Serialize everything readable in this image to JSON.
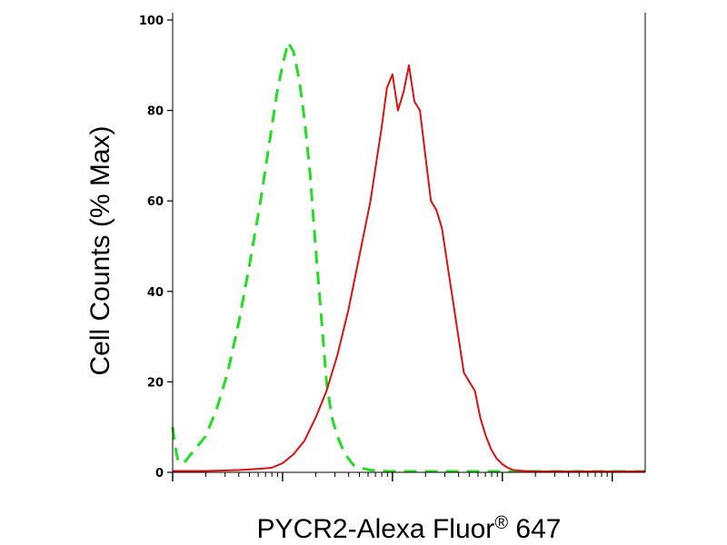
{
  "chart_data": {
    "type": "line",
    "title": "",
    "ylabel": "Cell Counts (% Max)",
    "xlabel": "PYCR2-Alexa Fluor",
    "xlabel_superscript": "®",
    "xlabel_suffix": " 647",
    "ylim": [
      0,
      100
    ],
    "yticks": [
      0,
      20,
      40,
      60,
      80,
      100
    ],
    "ytick_labels": [
      "0",
      "20",
      "40",
      "60",
      "80",
      "100"
    ],
    "xscale": "log",
    "xlim_decades": [
      0,
      4.3
    ],
    "grid": false,
    "legend": "none",
    "series": [
      {
        "style": "dashed",
        "color": "#22dd22",
        "x": [
          0.0,
          0.02,
          0.05,
          0.1,
          0.15,
          0.2,
          0.3,
          0.4,
          0.5,
          0.6,
          0.7,
          0.8,
          0.85,
          0.9,
          0.95,
          1.0,
          1.05,
          1.1,
          1.15,
          1.2,
          1.25,
          1.3,
          1.35,
          1.4,
          1.45,
          1.5,
          1.55,
          1.6,
          1.65,
          1.7,
          1.8,
          1.9,
          2.0,
          2.2,
          2.4,
          2.6,
          2.8,
          3.0,
          3.2,
          3.4,
          3.6,
          3.8,
          4.0,
          4.2,
          4.3
        ],
        "y": [
          10,
          6,
          2.5,
          2,
          3.5,
          5,
          8,
          14,
          22,
          33,
          46,
          60,
          68,
          76,
          84,
          90,
          95,
          93,
          87,
          78,
          66,
          50,
          35,
          20,
          12,
          8,
          5,
          3,
          1.5,
          1,
          0.5,
          0.3,
          0.2,
          0.2,
          0.2,
          0.2,
          0.2,
          0.2,
          0.2,
          0.2,
          0.2,
          0.2,
          0.2,
          0.2,
          0.2
        ]
      },
      {
        "style": "solid",
        "color": "#dd1111",
        "x": [
          0.0,
          0.3,
          0.6,
          0.8,
          0.9,
          1.0,
          1.1,
          1.2,
          1.3,
          1.4,
          1.5,
          1.6,
          1.7,
          1.8,
          1.85,
          1.9,
          1.95,
          2.0,
          2.05,
          2.1,
          2.15,
          2.2,
          2.25,
          2.3,
          2.35,
          2.4,
          2.45,
          2.5,
          2.55,
          2.6,
          2.65,
          2.7,
          2.75,
          2.8,
          2.85,
          2.9,
          2.95,
          3.0,
          3.05,
          3.1,
          3.2,
          3.3,
          3.4,
          3.5,
          3.6,
          3.8,
          4.0,
          4.2,
          4.3
        ],
        "y": [
          0.3,
          0.3,
          0.5,
          0.8,
          1,
          2,
          4,
          7,
          12,
          18,
          26,
          36,
          48,
          60,
          68,
          76,
          85,
          88,
          80,
          84,
          90,
          82,
          80,
          70,
          60,
          58,
          54,
          46,
          38,
          30,
          22,
          20,
          18,
          12,
          8,
          5,
          3,
          1.8,
          1,
          0.5,
          0.3,
          0.2,
          0.2,
          0.2,
          0.2,
          0.2,
          0.2,
          0.2,
          0.2
        ]
      }
    ]
  }
}
